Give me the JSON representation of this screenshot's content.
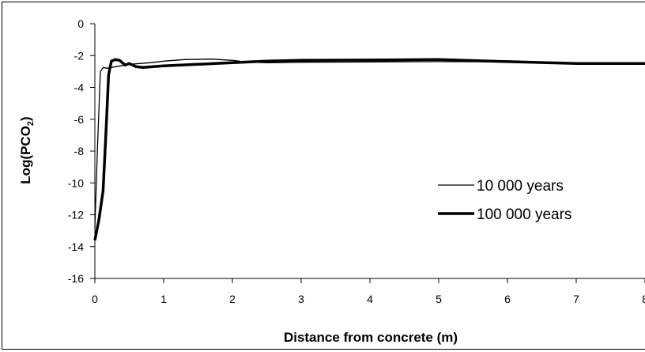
{
  "chart_data": {
    "type": "line",
    "xlabel": "Distance from concrete (m)",
    "ylabel_main": "Log(PCO",
    "ylabel_sub": "2",
    "ylabel_close": ")",
    "xlim": [
      0,
      8
    ],
    "ylim": [
      -16,
      0
    ],
    "x_ticks": [
      "0",
      "1",
      "2",
      "3",
      "4",
      "5",
      "6",
      "7",
      "8"
    ],
    "y_ticks": [
      "0",
      "-2",
      "-4",
      "-6",
      "-8",
      "-10",
      "-12",
      "-14",
      "-16"
    ],
    "grid": false,
    "legend_position": "center-right",
    "series": [
      {
        "name": "10 000 years",
        "line_weight": "thin",
        "color": "#000000",
        "points": [
          [
            0,
            -12.8
          ],
          [
            0.04,
            -7.5
          ],
          [
            0.08,
            -3.0
          ],
          [
            0.12,
            -2.75
          ],
          [
            0.18,
            -2.8
          ],
          [
            0.3,
            -2.7
          ],
          [
            0.5,
            -2.55
          ],
          [
            0.8,
            -2.45
          ],
          [
            1.0,
            -2.35
          ],
          [
            1.3,
            -2.25
          ],
          [
            1.7,
            -2.22
          ],
          [
            2.0,
            -2.3
          ],
          [
            2.2,
            -2.4
          ],
          [
            2.5,
            -2.45
          ],
          [
            3.0,
            -2.42
          ],
          [
            4.0,
            -2.4
          ],
          [
            5.0,
            -2.38
          ],
          [
            6.0,
            -2.4
          ],
          [
            7.0,
            -2.48
          ],
          [
            8.0,
            -2.45
          ]
        ]
      },
      {
        "name": "100 000 years",
        "line_weight": "thick",
        "color": "#000000",
        "points": [
          [
            0,
            -13.6
          ],
          [
            0.06,
            -12.3
          ],
          [
            0.12,
            -10.5
          ],
          [
            0.16,
            -7.0
          ],
          [
            0.2,
            -3.2
          ],
          [
            0.24,
            -2.35
          ],
          [
            0.3,
            -2.25
          ],
          [
            0.36,
            -2.3
          ],
          [
            0.44,
            -2.6
          ],
          [
            0.5,
            -2.5
          ],
          [
            0.6,
            -2.7
          ],
          [
            0.7,
            -2.75
          ],
          [
            1.0,
            -2.65
          ],
          [
            1.5,
            -2.55
          ],
          [
            2.0,
            -2.45
          ],
          [
            2.5,
            -2.35
          ],
          [
            3.0,
            -2.3
          ],
          [
            4.0,
            -2.28
          ],
          [
            5.0,
            -2.25
          ],
          [
            6.0,
            -2.38
          ],
          [
            7.0,
            -2.5
          ],
          [
            8.0,
            -2.5
          ]
        ]
      }
    ]
  }
}
